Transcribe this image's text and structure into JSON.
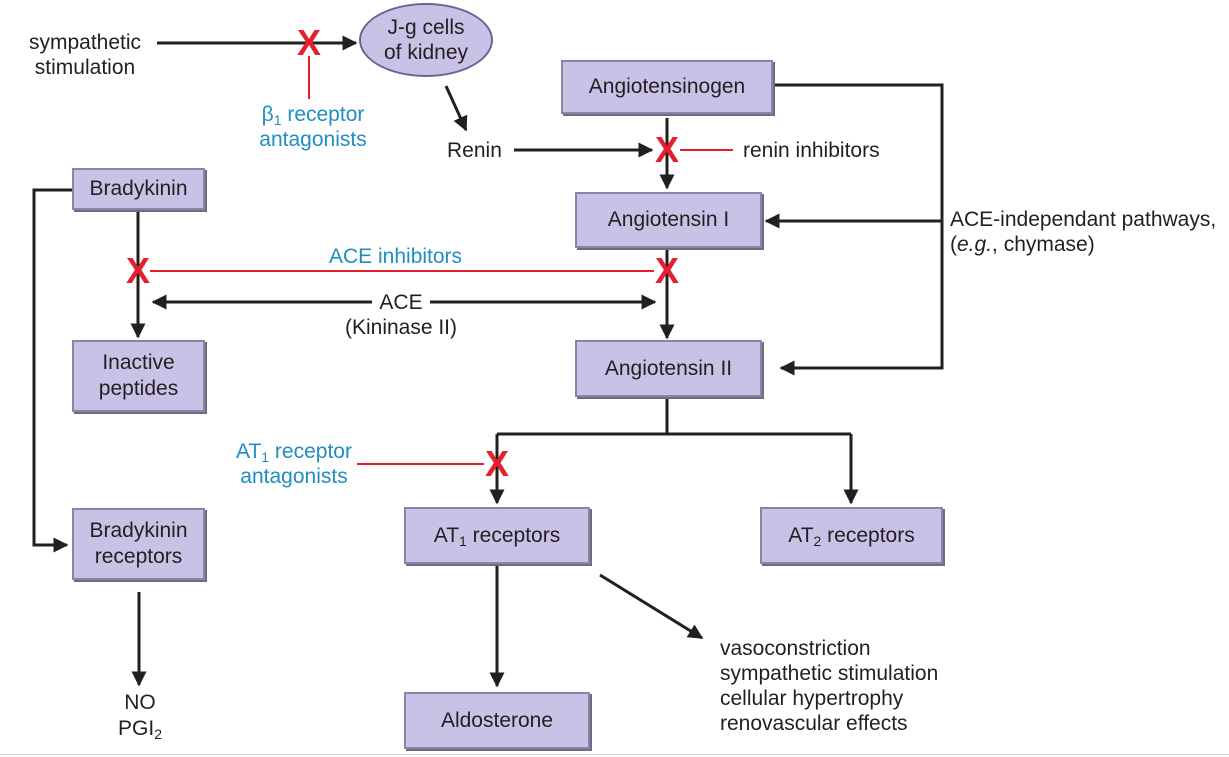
{
  "diagram": {
    "nodes": {
      "jg_cells": "J-g cells of kidney",
      "angiotensinogen": "Angiotensinogen",
      "angiotensin_i": "Angiotensin I",
      "angiotensin_ii": "Angiotensin II",
      "bradykinin": "Bradykinin",
      "inactive_peptides": "Inactive peptides",
      "bradykinin_receptors": "Bradykinin receptors",
      "at1_receptors": {
        "prefix": "AT",
        "sub": "1",
        "suffix": " receptors"
      },
      "at2_receptors": {
        "prefix": "AT",
        "sub": "2",
        "suffix": " receptors"
      },
      "aldosterone": "Aldosterone"
    },
    "labels": {
      "sympathetic_stimulation": "sympathetic stimulation",
      "renin": "Renin",
      "renin_inhibitors": "renin inhibitors",
      "ace_independent": "ACE-independant pathways, (e.g., chymase)",
      "ace": "ACE",
      "kininase": "(Kininase II)",
      "no": "NO",
      "pgi2": {
        "prefix": "PGI",
        "sub": "2"
      },
      "effects": [
        "vasoconstriction",
        "sympathetic stimulation",
        "cellular hypertrophy",
        "renovascular effects"
      ]
    },
    "drugs": {
      "beta1_antagonists": {
        "prefix": "β",
        "sub": "1",
        "suffix": " receptor",
        "line2": "antagonists"
      },
      "ace_inhibitors": "ACE inhibitors",
      "at1_antagonists": {
        "prefix": "AT",
        "sub": "1",
        "suffix": " receptor",
        "line2": "antagonists"
      }
    },
    "block_symbol": "X",
    "colors": {
      "box_fill": "#c9c2e6",
      "box_border": "#8a85a6",
      "drug_text": "#1f8ec2",
      "block_red": "#e5202e",
      "arrow": "#231f20"
    }
  }
}
